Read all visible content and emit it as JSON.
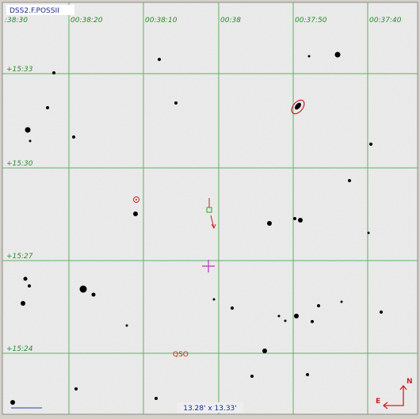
{
  "survey": "DSS2.F.POSSII",
  "ra_labels": [
    ":38:30",
    "00:38:20",
    "00:38:10",
    "00:38",
    "00:37:50",
    "00:37:40"
  ],
  "dec_labels": [
    "+15:33",
    "+15:30",
    "+15:27",
    "+15:24"
  ],
  "object_label": "QSO",
  "field_size": "13.28' x 13.33'",
  "compass": {
    "north": "N",
    "east": "E"
  }
}
